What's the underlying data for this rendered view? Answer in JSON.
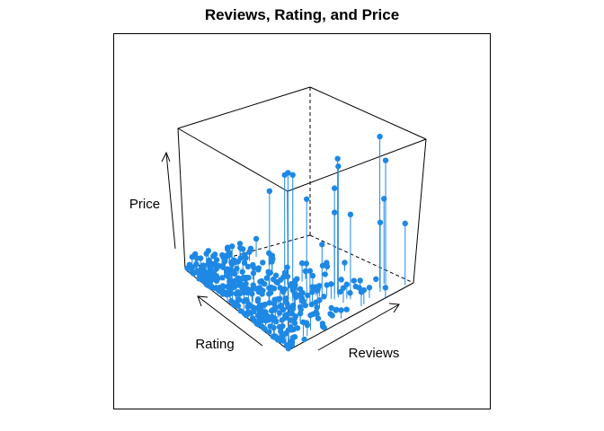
{
  "chart_data": {
    "type": "scatter3d",
    "title": "Reviews, Rating, and Price",
    "xlabel": "Reviews",
    "ylabel": "Rating",
    "zlabel": "Price",
    "axis_ticks": false,
    "point_color": "#1E88E5",
    "drop_lines": true,
    "view": "persp theta=-40 phi=20",
    "x_range": [
      0,
      1
    ],
    "y_range": [
      0,
      1
    ],
    "z_range": [
      0,
      1
    ],
    "points": [
      {
        "x": 0.02,
        "y": 0.78,
        "z": 0.0
      },
      {
        "x": 0.8,
        "y": 0.08,
        "z": 0.45
      },
      {
        "x": 0.88,
        "y": 0.14,
        "z": 0.55
      },
      {
        "x": 0.83,
        "y": 0.12,
        "z": 0.98
      },
      {
        "x": 0.22,
        "y": 0.45,
        "z": 0.72
      },
      {
        "x": 0.3,
        "y": 0.4,
        "z": 0.82
      },
      {
        "x": 0.31,
        "y": 0.38,
        "z": 0.84
      },
      {
        "x": 0.34,
        "y": 0.37,
        "z": 0.82
      },
      {
        "x": 0.58,
        "y": 0.22,
        "z": 0.85
      },
      {
        "x": 0.6,
        "y": 0.25,
        "z": 0.88
      },
      {
        "x": 0.41,
        "y": 0.32,
        "z": 0.66
      },
      {
        "x": 0.55,
        "y": 0.22,
        "z": 0.72
      },
      {
        "x": 0.62,
        "y": 0.15,
        "z": 0.55
      },
      {
        "x": 0.86,
        "y": 0.1,
        "z": 0.82
      },
      {
        "x": 0.6,
        "y": 0.28,
        "z": 0.52
      },
      {
        "x": 0.95,
        "y": 0.02,
        "z": 0.4
      },
      {
        "x": 0.5,
        "y": 0.28,
        "z": 0.35
      },
      {
        "x": 0.42,
        "y": 0.3,
        "z": 0.2
      }
    ],
    "cluster": "dense cloud of low-price points along the rating axis (several hundred points)"
  }
}
